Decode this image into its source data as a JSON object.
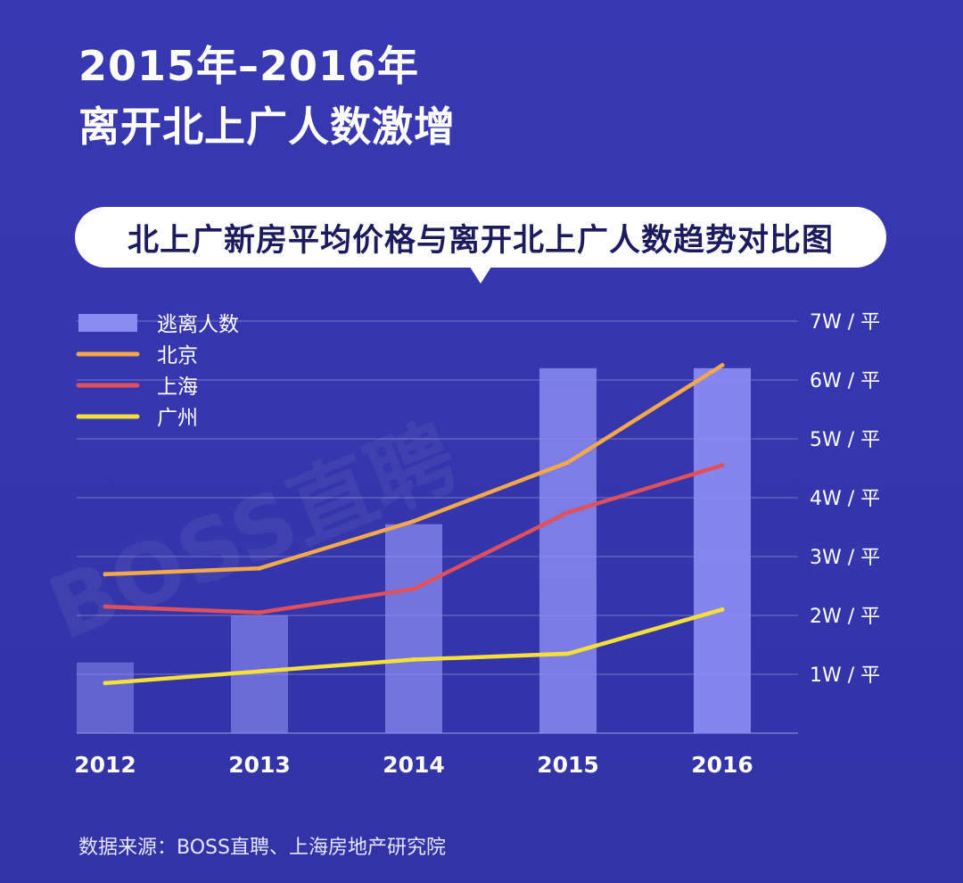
{
  "header": {
    "line1": "2015年–2016年",
    "line2": "离开北上广人数激增"
  },
  "subtitle": "北上广新房平均价格与离开北上广人数趋势对比图",
  "source": "数据来源：BOSS直聘、上海房地产研究院",
  "watermark": "BOSS直聘",
  "colors": {
    "background": "#3636ad",
    "bars": "#8a8af0",
    "beijing": "#f4a84a",
    "shanghai": "#e0505a",
    "guangzhou": "#f5e03a"
  },
  "chart_data": {
    "type": "bar+line",
    "categories": [
      "2012",
      "2013",
      "2014",
      "2015",
      "2016"
    ],
    "bar_series": {
      "name": "逃离人数",
      "values": [
        1.2,
        2.0,
        3.55,
        6.2,
        6.2
      ]
    },
    "line_series": [
      {
        "name": "北京",
        "values": [
          2.7,
          2.8,
          3.6,
          4.6,
          6.25
        ]
      },
      {
        "name": "上海",
        "values": [
          2.15,
          2.05,
          2.45,
          3.75,
          4.55
        ]
      },
      {
        "name": "广州",
        "values": [
          0.85,
          1.05,
          1.25,
          1.35,
          2.1
        ]
      }
    ],
    "y_right_ticks": [
      "1W / 平",
      "2W / 平",
      "3W / 平",
      "4W / 平",
      "5W / 平",
      "6W / 平",
      "7W / 平"
    ],
    "y_right_values": [
      1,
      2,
      3,
      4,
      5,
      6,
      7
    ],
    "ylim": [
      0,
      7
    ],
    "legend_position": "top-left",
    "grid": true
  }
}
